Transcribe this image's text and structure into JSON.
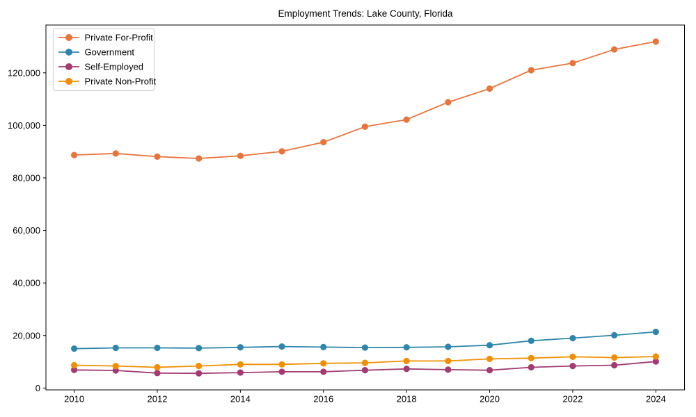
{
  "figure": {
    "title": "Employment Trends: Lake County, Florida"
  },
  "colors": {
    "background": "#ffffff",
    "axis": "#000000",
    "legend_border": "#cccccc",
    "private_for_profit": "#E8743B",
    "government": "#2E86AB",
    "self_employed": "#A23B72",
    "private_non_profit": "#F18F01"
  },
  "chart_data": {
    "type": "line",
    "title": "Employment Trends: Lake County, Florida",
    "xlabel": "",
    "ylabel": "",
    "grid": false,
    "legend_position": "upper left",
    "x": [
      2010,
      2011,
      2012,
      2013,
      2014,
      2015,
      2016,
      2017,
      2018,
      2019,
      2020,
      2021,
      2022,
      2023,
      2024
    ],
    "series": [
      {
        "name": "Private For-Profit",
        "color": "#E8743B",
        "values": [
          88700,
          89300,
          88100,
          87400,
          88400,
          90100,
          93600,
          99500,
          102200,
          108800,
          114000,
          121000,
          123700,
          128900,
          131900
        ]
      },
      {
        "name": "Government",
        "color": "#2E86AB",
        "values": [
          15000,
          15300,
          15300,
          15200,
          15500,
          15800,
          15600,
          15400,
          15500,
          15700,
          16300,
          18000,
          19000,
          20100,
          21400
        ]
      },
      {
        "name": "Self-Employed",
        "color": "#A23B72",
        "values": [
          6900,
          6700,
          5700,
          5600,
          5900,
          6200,
          6200,
          6800,
          7300,
          7000,
          6800,
          7900,
          8400,
          8700,
          10100
        ]
      },
      {
        "name": "Private Non-Profit",
        "color": "#F18F01",
        "values": [
          8700,
          8400,
          7900,
          8400,
          9000,
          9000,
          9400,
          9600,
          10300,
          10300,
          11100,
          11400,
          11900,
          11600,
          12000
        ]
      }
    ],
    "xticks": [
      2010,
      2012,
      2014,
      2016,
      2018,
      2020,
      2022,
      2024
    ],
    "xtick_labels": [
      "2010",
      "2012",
      "2014",
      "2016",
      "2018",
      "2020",
      "2022",
      "2024"
    ],
    "yticks": [
      0,
      20000,
      40000,
      60000,
      80000,
      100000,
      120000
    ],
    "ytick_labels": [
      "0",
      "20,000",
      "40,000",
      "60,000",
      "80,000",
      "100,000",
      "120,000"
    ],
    "xlim": [
      2009.32,
      2024.69
    ],
    "ylim": [
      -700,
      138200
    ]
  }
}
